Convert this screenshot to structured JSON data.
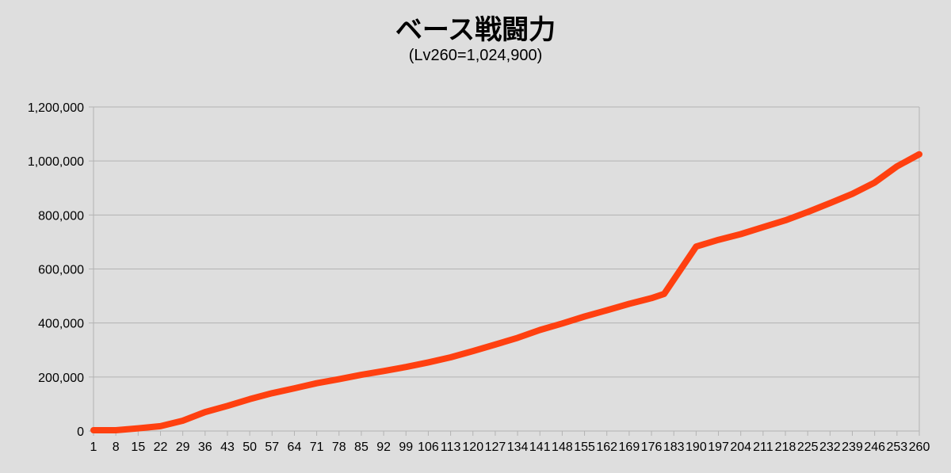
{
  "chart_data": {
    "type": "line",
    "title": "ベース戦闘力",
    "subtitle": "(Lv260=1,024,900)",
    "xlabel": "",
    "ylabel": "",
    "x_tick_labels": [
      "1",
      "8",
      "15",
      "22",
      "29",
      "36",
      "43",
      "50",
      "57",
      "64",
      "71",
      "78",
      "85",
      "92",
      "99",
      "106",
      "113",
      "120",
      "127",
      "134",
      "141",
      "148",
      "155",
      "162",
      "169",
      "176",
      "183",
      "190",
      "197",
      "204",
      "211",
      "218",
      "225",
      "232",
      "239",
      "246",
      "253",
      "260"
    ],
    "y_tick_labels": [
      "0",
      "200,000",
      "400,000",
      "600,000",
      "800,000",
      "1,000,000",
      "1,200,000"
    ],
    "ylim": [
      0,
      1200000
    ],
    "xlim": [
      1,
      260
    ],
    "grid": true,
    "legend": "none",
    "series": [
      {
        "color": "#ff4010",
        "points": [
          [
            1,
            3000
          ],
          [
            8,
            3000
          ],
          [
            15,
            10000
          ],
          [
            22,
            18000
          ],
          [
            29,
            38000
          ],
          [
            36,
            70000
          ],
          [
            43,
            93000
          ],
          [
            50,
            118000
          ],
          [
            57,
            140000
          ],
          [
            64,
            158000
          ],
          [
            71,
            177000
          ],
          [
            78,
            192000
          ],
          [
            85,
            208000
          ],
          [
            92,
            222000
          ],
          [
            99,
            237000
          ],
          [
            106,
            254000
          ],
          [
            113,
            273000
          ],
          [
            120,
            296000
          ],
          [
            127,
            320000
          ],
          [
            134,
            345000
          ],
          [
            141,
            374000
          ],
          [
            148,
            398000
          ],
          [
            155,
            424000
          ],
          [
            162,
            447000
          ],
          [
            169,
            471000
          ],
          [
            176,
            492000
          ],
          [
            180,
            508000
          ],
          [
            190,
            683000
          ],
          [
            197,
            708000
          ],
          [
            204,
            729000
          ],
          [
            211,
            755000
          ],
          [
            218,
            780000
          ],
          [
            225,
            811000
          ],
          [
            232,
            844000
          ],
          [
            239,
            878000
          ],
          [
            246,
            920000
          ],
          [
            253,
            980000
          ],
          [
            260,
            1024900
          ]
        ]
      }
    ]
  }
}
